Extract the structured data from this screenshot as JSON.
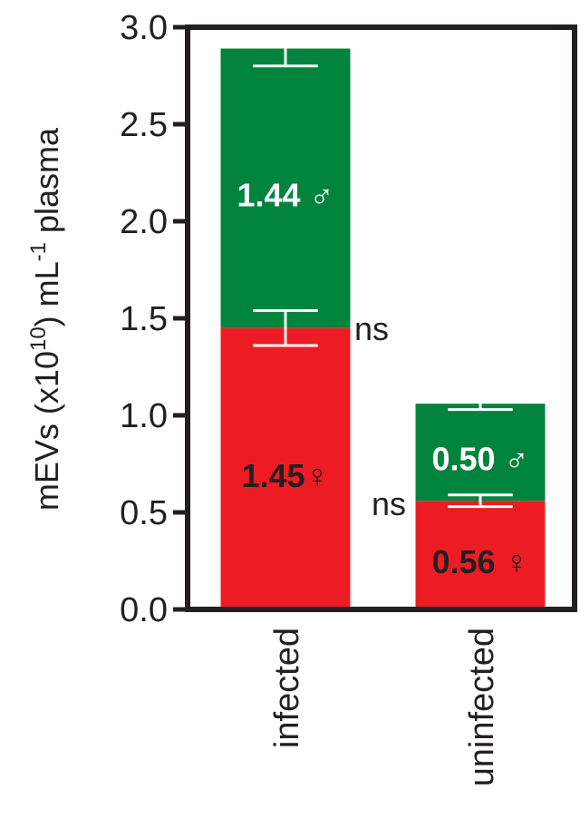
{
  "chart_data": {
    "type": "bar",
    "stacked": true,
    "categories": [
      "infected",
      "uninfected"
    ],
    "series": [
      {
        "color": "#ed1c24",
        "values": [
          1.45,
          0.56
        ],
        "errors": [
          0.09,
          0.03
        ],
        "labels": [
          "1.45♀",
          "0.56 ♀"
        ]
      },
      {
        "color": "#00843d",
        "values": [
          1.44,
          0.5
        ],
        "errors": [
          0.09,
          0.03
        ],
        "labels": [
          "1.44 ♂",
          "0.50 ♂"
        ]
      }
    ],
    "ylabel": "mEVs (x10",
    "ylabel_sup1": "10",
    "ylabel_mid": ") mL",
    "ylabel_sup2": "-1",
    "ylabel_end": " plasma",
    "ylim": [
      0,
      3.0
    ],
    "yticks": [
      "0.0",
      "0.5",
      "1.0",
      "1.5",
      "2.0",
      "2.5",
      "3.0"
    ],
    "annotations": [
      "ns",
      "ns"
    ],
    "grid": false
  }
}
